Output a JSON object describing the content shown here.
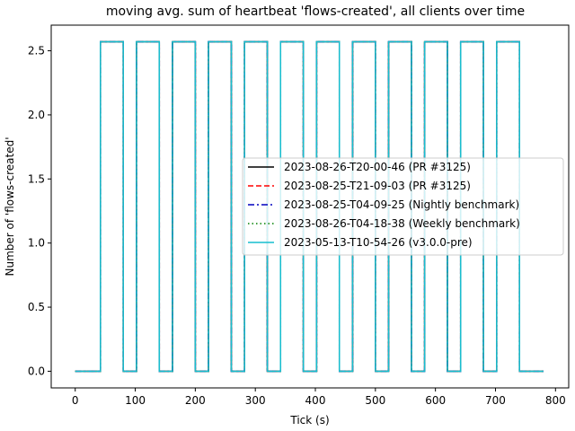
{
  "chart_data": {
    "type": "line",
    "title": "moving avg. sum of heartbeat 'flows-created', all clients over time",
    "xlabel": "Tick (s)",
    "ylabel": "Number of 'flows-created'",
    "xlim": [
      -40,
      822
    ],
    "ylim": [
      -0.13,
      2.7
    ],
    "xticks": [
      0,
      100,
      200,
      300,
      400,
      500,
      600,
      700,
      800
    ],
    "yticks": [
      0.0,
      0.5,
      1.0,
      1.5,
      2.0,
      2.5
    ],
    "ytick_labels": [
      "0.0",
      "0.5",
      "1.0",
      "1.5",
      "2.0",
      "2.5"
    ],
    "grid": false,
    "legend_position": "center-right",
    "step_pattern": {
      "x": [
        0,
        42,
        42,
        80,
        80,
        102,
        102,
        140,
        140,
        162,
        162,
        200,
        200,
        222,
        222,
        260,
        260,
        282,
        282,
        320,
        320,
        342,
        342,
        380,
        380,
        402,
        402,
        440,
        440,
        462,
        462,
        500,
        500,
        522,
        522,
        560,
        560,
        582,
        582,
        620,
        620,
        642,
        642,
        680,
        680,
        702,
        702,
        740,
        740,
        780
      ],
      "y": [
        0,
        0,
        2.57,
        2.57,
        0,
        0,
        2.57,
        2.57,
        0,
        0,
        2.57,
        2.57,
        0,
        0,
        2.57,
        2.57,
        0,
        0,
        2.57,
        2.57,
        0,
        0,
        2.57,
        2.57,
        0,
        0,
        2.57,
        2.57,
        0,
        0,
        2.57,
        2.57,
        0,
        0,
        2.57,
        2.57,
        0,
        0,
        2.57,
        2.57,
        0,
        0,
        2.57,
        2.57,
        0,
        0,
        2.57,
        2.57,
        0,
        0
      ]
    },
    "series": [
      {
        "name": "2023-08-26-T20-00-46 (PR #3125)",
        "color": "#000000",
        "dash": "solid"
      },
      {
        "name": "2023-08-25-T21-09-03 (PR #3125)",
        "color": "#ff0000",
        "dash": "dashed"
      },
      {
        "name": "2023-08-25-T04-09-25 (Nightly benchmark)",
        "color": "#0000bf",
        "dash": "dashdot"
      },
      {
        "name": "2023-08-26-T04-18-38 (Weekly benchmark)",
        "color": "#008000",
        "dash": "dotted"
      },
      {
        "name": "2023-05-13-T10-54-26 (v3.0.0-pre)",
        "color": "#17becf",
        "dash": "solid"
      }
    ]
  }
}
